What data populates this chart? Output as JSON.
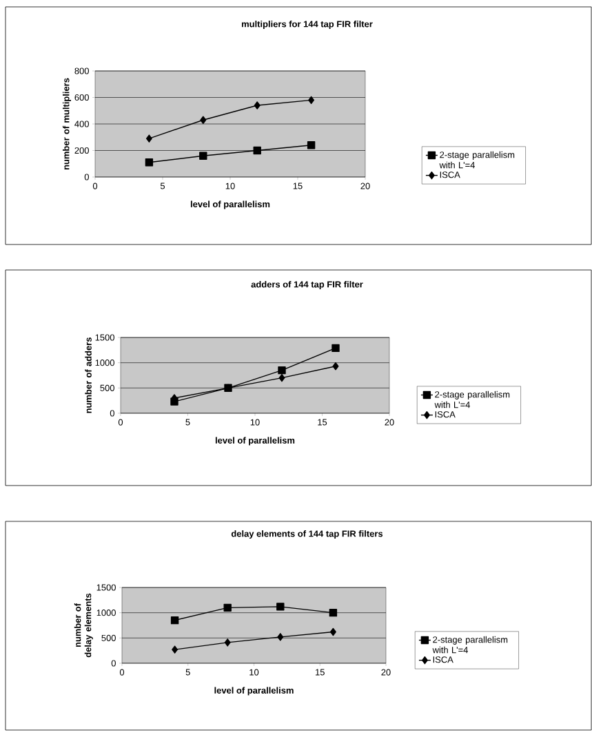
{
  "chart_data": [
    {
      "type": "line",
      "title": "multipliers for 144 tap FIR filter",
      "xlabel": "level of parallelism",
      "ylabel": "number of multipliers",
      "x": [
        4,
        8,
        12,
        16
      ],
      "xlim": [
        0,
        20
      ],
      "xticks": [
        0,
        5,
        10,
        15,
        20
      ],
      "ylim": [
        0,
        800
      ],
      "yticks": [
        0,
        200,
        400,
        600,
        800
      ],
      "grid": "y",
      "legend": "right",
      "series": [
        {
          "name": "ISCA",
          "color": "#000000",
          "marker": "diamond",
          "values": [
            290,
            430,
            540,
            580
          ]
        },
        {
          "name": "2-stage parallelism with L'=4",
          "color": "#000000",
          "marker": "square",
          "values": [
            110,
            160,
            200,
            240
          ]
        }
      ]
    },
    {
      "type": "line",
      "title": "adders of 144 tap FIR filter",
      "xlabel": "level of parallelism",
      "ylabel": "number of adders",
      "x": [
        4,
        8,
        12,
        16
      ],
      "xlim": [
        0,
        20
      ],
      "xticks": [
        0,
        5,
        10,
        15,
        20
      ],
      "ylim": [
        0,
        1500
      ],
      "yticks": [
        0,
        500,
        1000,
        1500
      ],
      "grid": "y",
      "legend": "right",
      "series": [
        {
          "name": "ISCA",
          "color": "#000000",
          "marker": "diamond",
          "values": [
            300,
            500,
            700,
            930
          ]
        },
        {
          "name": "2-stage parallelism with L'=4",
          "color": "#000000",
          "marker": "square",
          "values": [
            230,
            500,
            850,
            1290
          ]
        }
      ]
    },
    {
      "type": "line",
      "title": "delay elements of 144 tap FIR filters",
      "xlabel": "level of parallelism",
      "ylabel": "number of delay elements",
      "x": [
        4,
        8,
        12,
        16
      ],
      "xlim": [
        0,
        20
      ],
      "xticks": [
        0,
        5,
        10,
        15,
        20
      ],
      "ylim": [
        0,
        1500
      ],
      "yticks": [
        0,
        500,
        1000,
        1500
      ],
      "grid": "y",
      "legend": "right",
      "series": [
        {
          "name": "ISCA",
          "color": "#000000",
          "marker": "diamond",
          "values": [
            270,
            410,
            520,
            620
          ]
        },
        {
          "name": "2-stage parallelism with L'=4",
          "color": "#000000",
          "marker": "square",
          "values": [
            850,
            1100,
            1120,
            1000
          ]
        }
      ]
    }
  ]
}
